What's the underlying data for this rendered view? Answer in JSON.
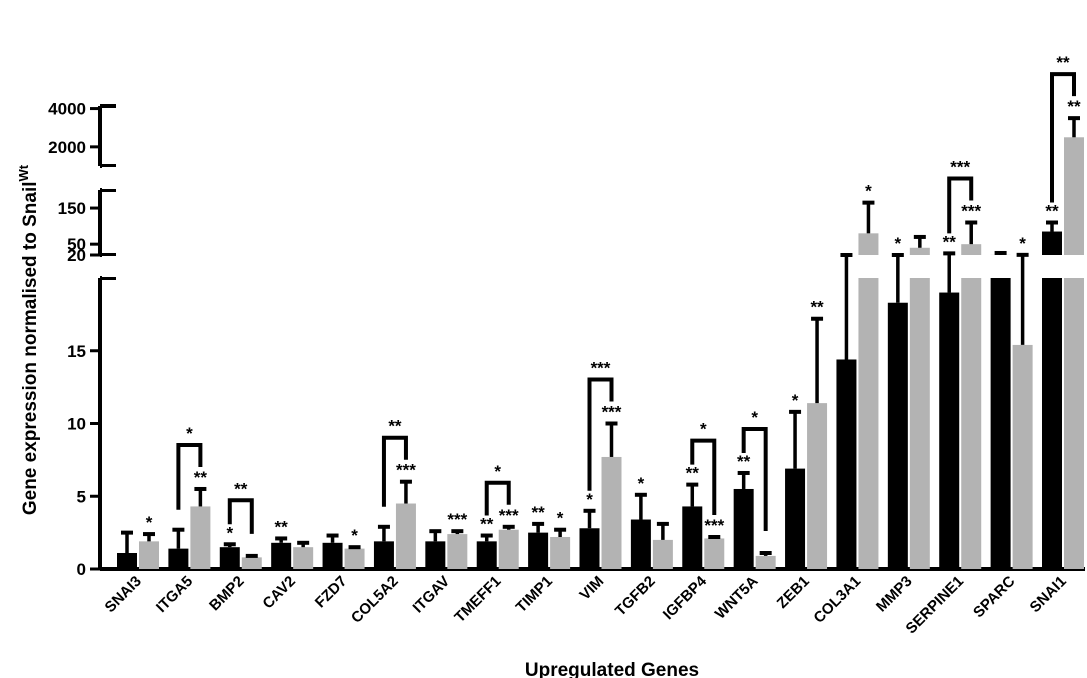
{
  "chart_data": {
    "type": "bar",
    "xlabel": "Upregulated Genes",
    "ylabel": "Gene expression normalised to Snail",
    "ylabel_superscript": "Wt",
    "colors": {
      "series1": "#000000",
      "series2": "#b3b3b3",
      "axis": "#000000"
    },
    "y_segments": [
      {
        "range": [
          0,
          20
        ],
        "ticks": [
          0,
          5,
          10,
          15,
          20
        ]
      },
      {
        "range": [
          20,
          200
        ],
        "ticks": [
          50,
          150
        ]
      },
      {
        "range": [
          1000,
          4500
        ],
        "ticks": [
          2000,
          4000
        ]
      }
    ],
    "categories": [
      "SNAI3",
      "ITGA5",
      "BMP2",
      "CAV2",
      "FZD7",
      "COL5A2",
      "ITGAV",
      "TMEFF1",
      "TIMP1",
      "VIM",
      "TGFB2",
      "IGFBP4",
      "WNT5A",
      "ZEB1",
      "COL3A1",
      "MMP3",
      "SERPINE1",
      "SPARC",
      "SNAI1"
    ],
    "series": [
      {
        "values": [
          1.1,
          1.4,
          1.5,
          1.8,
          1.8,
          1.9,
          1.9,
          1.9,
          2.5,
          2.8,
          3.4,
          4.3,
          5.5,
          6.9,
          14.4,
          18.3,
          19.0,
          20.1,
          85
        ],
        "errors": [
          1.4,
          1.3,
          0.2,
          0.3,
          0.5,
          1.0,
          0.7,
          0.4,
          0.6,
          1.2,
          1.7,
          1.5,
          1.1,
          3.9,
          5.6,
          1.7,
          5.5,
          5.5,
          25
        ],
        "stars": [
          "",
          "",
          "*",
          "**",
          "",
          "",
          "",
          "**",
          "**",
          "*",
          "*",
          "**",
          "**",
          "*",
          "",
          "*",
          "**",
          "",
          "**"
        ]
      },
      {
        "values": [
          1.9,
          4.3,
          0.8,
          1.5,
          1.4,
          4.5,
          2.4,
          2.7,
          2.2,
          7.7,
          2.0,
          2.1,
          0.9,
          11.4,
          80,
          40,
          50,
          15.4,
          2500
        ],
        "errors": [
          0.5,
          1.2,
          0.1,
          0.3,
          0.1,
          1.5,
          0.2,
          0.2,
          0.5,
          2.3,
          1.1,
          0.1,
          0.2,
          5.8,
          85,
          30,
          60,
          5.0,
          1000
        ],
        "stars": [
          "*",
          "**",
          "",
          "",
          "*",
          "***",
          "***",
          "***",
          "*",
          "***",
          "",
          "***",
          "",
          "**",
          "*",
          "",
          "***",
          "*",
          "**"
        ]
      }
    ],
    "comparisons": [
      {
        "category": "ITGA5",
        "label": "*"
      },
      {
        "category": "BMP2",
        "label": "**"
      },
      {
        "category": "COL5A2",
        "label": "**"
      },
      {
        "category": "TMEFF1",
        "label": "*"
      },
      {
        "category": "VIM",
        "label": "***"
      },
      {
        "category": "IGFBP4",
        "label": "*"
      },
      {
        "category": "WNT5A",
        "label": "*"
      },
      {
        "category": "SERPINE1",
        "label": "***"
      },
      {
        "category": "SNAI1",
        "label": "**"
      }
    ]
  }
}
